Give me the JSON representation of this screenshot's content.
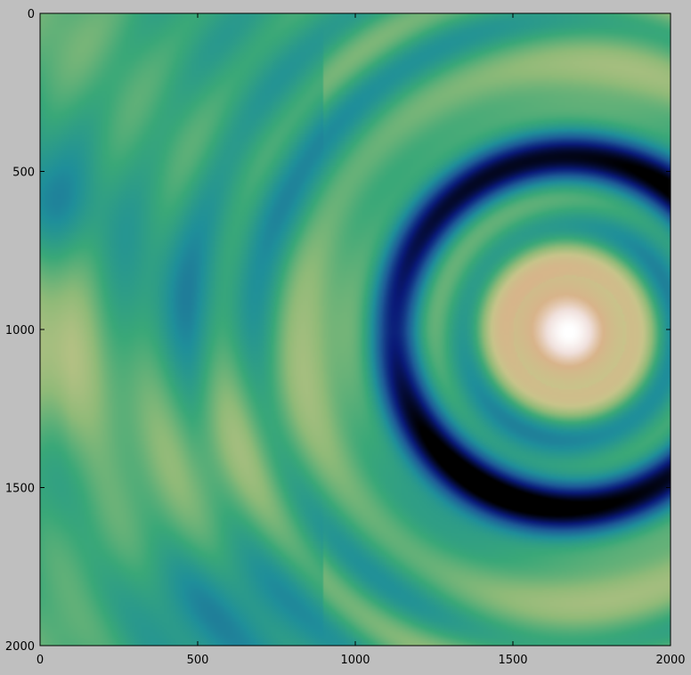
{
  "chart_data": {
    "type": "heatmap",
    "title": "",
    "xlabel": "",
    "ylabel": "",
    "xlim": [
      0,
      2000
    ],
    "ylim": [
      2000,
      0
    ],
    "y_axis_inverted": true,
    "grid": false,
    "colorbar": false,
    "colormap": "gist_earth",
    "colormap_stops": [
      "#000000",
      "#0a1a78",
      "#1e5c98",
      "#1f8f9a",
      "#3aa878",
      "#8fba78",
      "#c8c48a",
      "#d8b48a",
      "#f0e0dc",
      "#ffffff"
    ],
    "x_ticks": [
      0,
      500,
      1000,
      1500,
      2000
    ],
    "y_ticks": [
      0,
      500,
      1000,
      1500,
      2000
    ],
    "x_tick_labels": [
      "0",
      "500",
      "1000",
      "1500",
      "2000"
    ],
    "y_tick_labels": [
      "0",
      "500",
      "1000",
      "1500",
      "2000"
    ],
    "features": [
      {
        "description": "bright peak",
        "center": [
          1680,
          1010
        ],
        "radius": 170
      },
      {
        "description": "low ring",
        "center": [
          1680,
          1010
        ],
        "radius": 560
      },
      {
        "description": "raised band",
        "x_range": [
          0,
          480
        ],
        "y_range": [
          850,
          1550
        ]
      }
    ]
  }
}
